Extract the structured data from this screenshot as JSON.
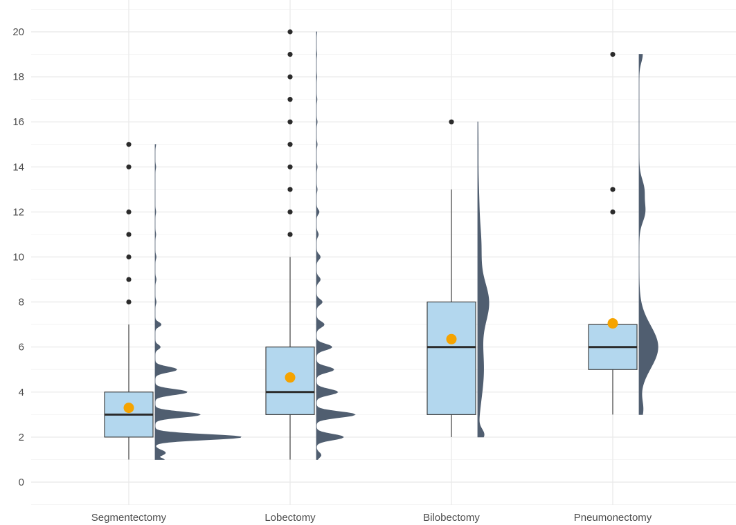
{
  "chart_data": {
    "type": "raincloud",
    "title": "",
    "xlabel": "",
    "ylabel": "",
    "ylim": [
      -1,
      21
    ],
    "y_ticks": [
      0,
      2,
      4,
      6,
      8,
      10,
      12,
      14,
      16,
      18,
      20
    ],
    "grid": true,
    "colors": {
      "box_fill": "#b3d7ee",
      "box_stroke": "#333333",
      "median": "#2b2b2b",
      "mean_point": "#f5a300",
      "outlier": "#2b2b2b",
      "density": "#505e70",
      "grid_major": "#ebebeb",
      "grid_minor": "#f4f4f4"
    },
    "categories": [
      "Segmentectomy",
      "Lobectomy",
      "Bilobectomy",
      "Pneumonectomy"
    ],
    "groups": [
      {
        "name": "Segmentectomy",
        "box": {
          "q1": 2,
          "median": 3,
          "q3": 4,
          "whisker_low": 1,
          "whisker_high": 7
        },
        "mean": 3.3,
        "outliers": [
          8,
          9,
          10,
          11,
          12,
          14,
          15
        ],
        "density": {
          "y_min": 1,
          "y_max": 15,
          "scale": 1.0,
          "peaks": [
            [
              1,
              0.1,
              0.06
            ],
            [
              1.3,
              0.12,
              0.12
            ],
            [
              2,
              1.0,
              0.12
            ],
            [
              3,
              0.52,
              0.12
            ],
            [
              4,
              0.37,
              0.12
            ],
            [
              5,
              0.25,
              0.12
            ],
            [
              6,
              0.06,
              0.1
            ],
            [
              7,
              0.07,
              0.1
            ],
            [
              8,
              0.012,
              0.1
            ],
            [
              9,
              0.012,
              0.1
            ],
            [
              10,
              0.012,
              0.1
            ],
            [
              11,
              0.008,
              0.1
            ],
            [
              12,
              0.008,
              0.1
            ],
            [
              14,
              0.008,
              0.1
            ],
            [
              15,
              0.008,
              0.1
            ]
          ]
        }
      },
      {
        "name": "Lobectomy",
        "box": {
          "q1": 3,
          "median": 4,
          "q3": 6,
          "whisker_low": 1,
          "whisker_high": 10
        },
        "mean": 4.65,
        "outliers": [
          11,
          12,
          13,
          14,
          15,
          16,
          17,
          18,
          19,
          20
        ],
        "density": {
          "y_min": 1,
          "y_max": 20,
          "scale": 0.45,
          "peaks": [
            [
              1.2,
              0.12,
              0.12
            ],
            [
              2,
              0.7,
              0.13
            ],
            [
              3,
              1.0,
              0.13
            ],
            [
              4,
              0.55,
              0.13
            ],
            [
              5,
              0.45,
              0.13
            ],
            [
              6,
              0.4,
              0.13
            ],
            [
              7,
              0.2,
              0.13
            ],
            [
              8,
              0.15,
              0.12
            ],
            [
              9,
              0.1,
              0.12
            ],
            [
              10,
              0.1,
              0.12
            ],
            [
              11,
              0.05,
              0.11
            ],
            [
              12,
              0.07,
              0.11
            ],
            [
              13,
              0.02,
              0.1
            ],
            [
              14,
              0.02,
              0.1
            ],
            [
              15,
              0.02,
              0.1
            ],
            [
              16,
              0.02,
              0.1
            ],
            [
              17,
              0.015,
              0.1
            ],
            [
              18,
              0.01,
              0.1
            ],
            [
              19,
              0.01,
              0.1
            ],
            [
              20,
              0.01,
              0.1
            ]
          ]
        }
      },
      {
        "name": "Bilobectomy",
        "box": {
          "q1": 3,
          "median": 6,
          "q3": 8,
          "whisker_low": 2,
          "whisker_high": 13
        },
        "mean": 6.35,
        "outliers": [
          16
        ],
        "density": {
          "y_min": 2,
          "y_max": 16,
          "scale": 0.13,
          "peaks": [
            [
              2.1,
              0.55,
              0.25
            ],
            [
              5,
              0.55,
              1.3
            ],
            [
              8,
              1.0,
              0.9
            ],
            [
              10.5,
              0.3,
              0.9
            ],
            [
              12.5,
              0.1,
              0.9
            ],
            [
              15,
              0.04,
              0.9
            ]
          ]
        }
      },
      {
        "name": "Pneumonectomy",
        "box": {
          "q1": 5,
          "median": 6,
          "q3": 7,
          "whisker_low": 3,
          "whisker_high": 7
        },
        "mean": 7.05,
        "outliers": [
          12,
          13,
          19
        ],
        "density": {
          "y_min": 3,
          "y_max": 19,
          "scale": 0.22,
          "peaks": [
            [
              3.2,
              0.2,
              0.45
            ],
            [
              6,
              1.0,
              0.95
            ],
            [
              12,
              0.3,
              0.45
            ],
            [
              13,
              0.25,
              0.45
            ],
            [
              19,
              0.18,
              0.35
            ]
          ]
        }
      }
    ]
  }
}
